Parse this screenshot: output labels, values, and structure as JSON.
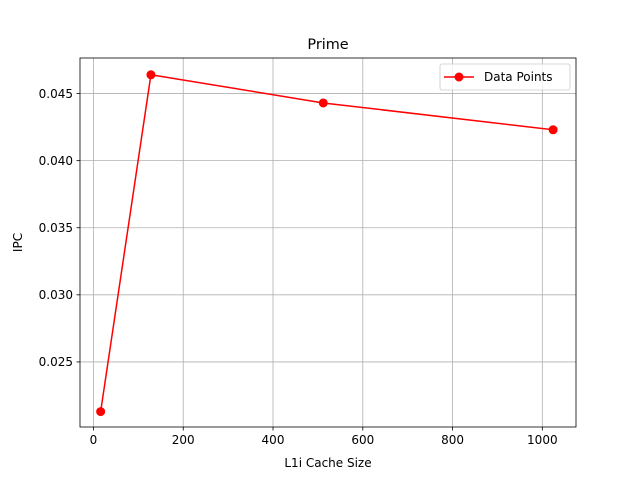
{
  "chart_data": {
    "type": "line",
    "title": "Prime",
    "xlabel": "L1i Cache Size",
    "ylabel": "IPC",
    "xlim": [
      -30,
      1075
    ],
    "ylim": [
      0.02015,
      0.04765
    ],
    "xticks": [
      0,
      200,
      400,
      600,
      800,
      1000
    ],
    "xtick_labels": [
      "0",
      "200",
      "400",
      "600",
      "800",
      "1000"
    ],
    "yticks": [
      0.025,
      0.03,
      0.035,
      0.04,
      0.045
    ],
    "ytick_labels": [
      "0.025",
      "0.030",
      "0.035",
      "0.040",
      "0.045"
    ],
    "grid": true,
    "legend_position": "top-right",
    "series": [
      {
        "name": "Data Points",
        "color": "#ff0000",
        "marker": "circle",
        "x": [
          16,
          128,
          512,
          1024
        ],
        "y": [
          0.0213,
          0.0464,
          0.0443,
          0.0423
        ]
      }
    ]
  }
}
